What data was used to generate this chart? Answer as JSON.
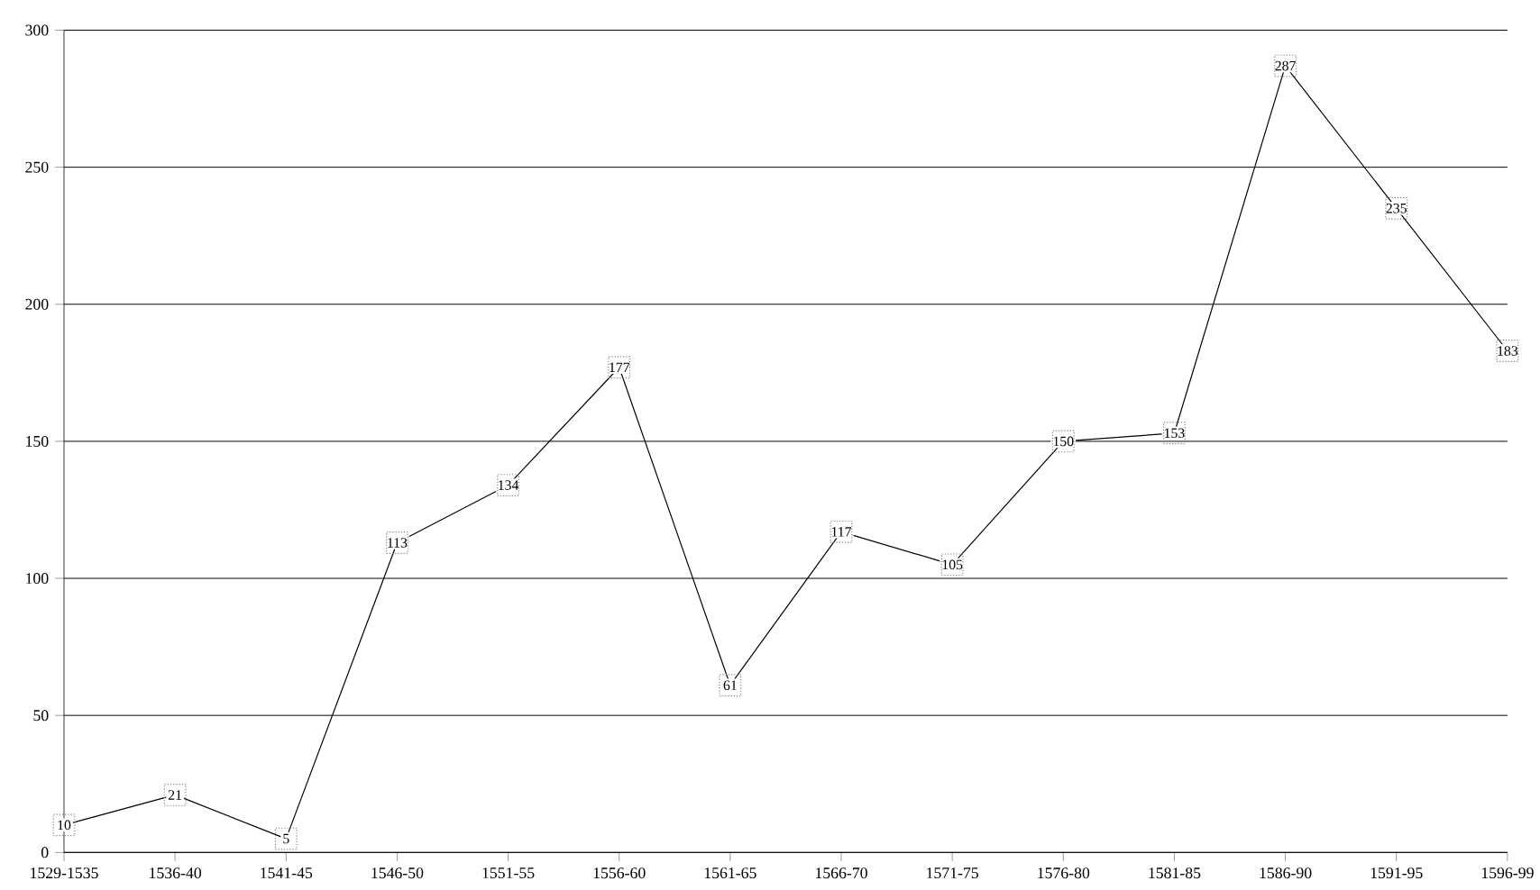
{
  "chart_data": {
    "type": "line",
    "categories": [
      "1529-1535",
      "1536-40",
      "1541-45",
      "1546-50",
      "1551-55",
      "1556-60",
      "1561-65",
      "1566-70",
      "1571-75",
      "1576-80",
      "1581-85",
      "1586-90",
      "1591-95",
      "1596-99"
    ],
    "values": [
      10,
      21,
      5,
      113,
      134,
      177,
      61,
      117,
      105,
      150,
      153,
      287,
      235,
      183
    ],
    "color": "#000000",
    "ylim": [
      0,
      300
    ],
    "yticks": [
      0,
      50,
      100,
      150,
      200,
      250,
      300
    ],
    "grid": "y",
    "data_labels": true,
    "marker": "square",
    "line_style": "solid"
  }
}
